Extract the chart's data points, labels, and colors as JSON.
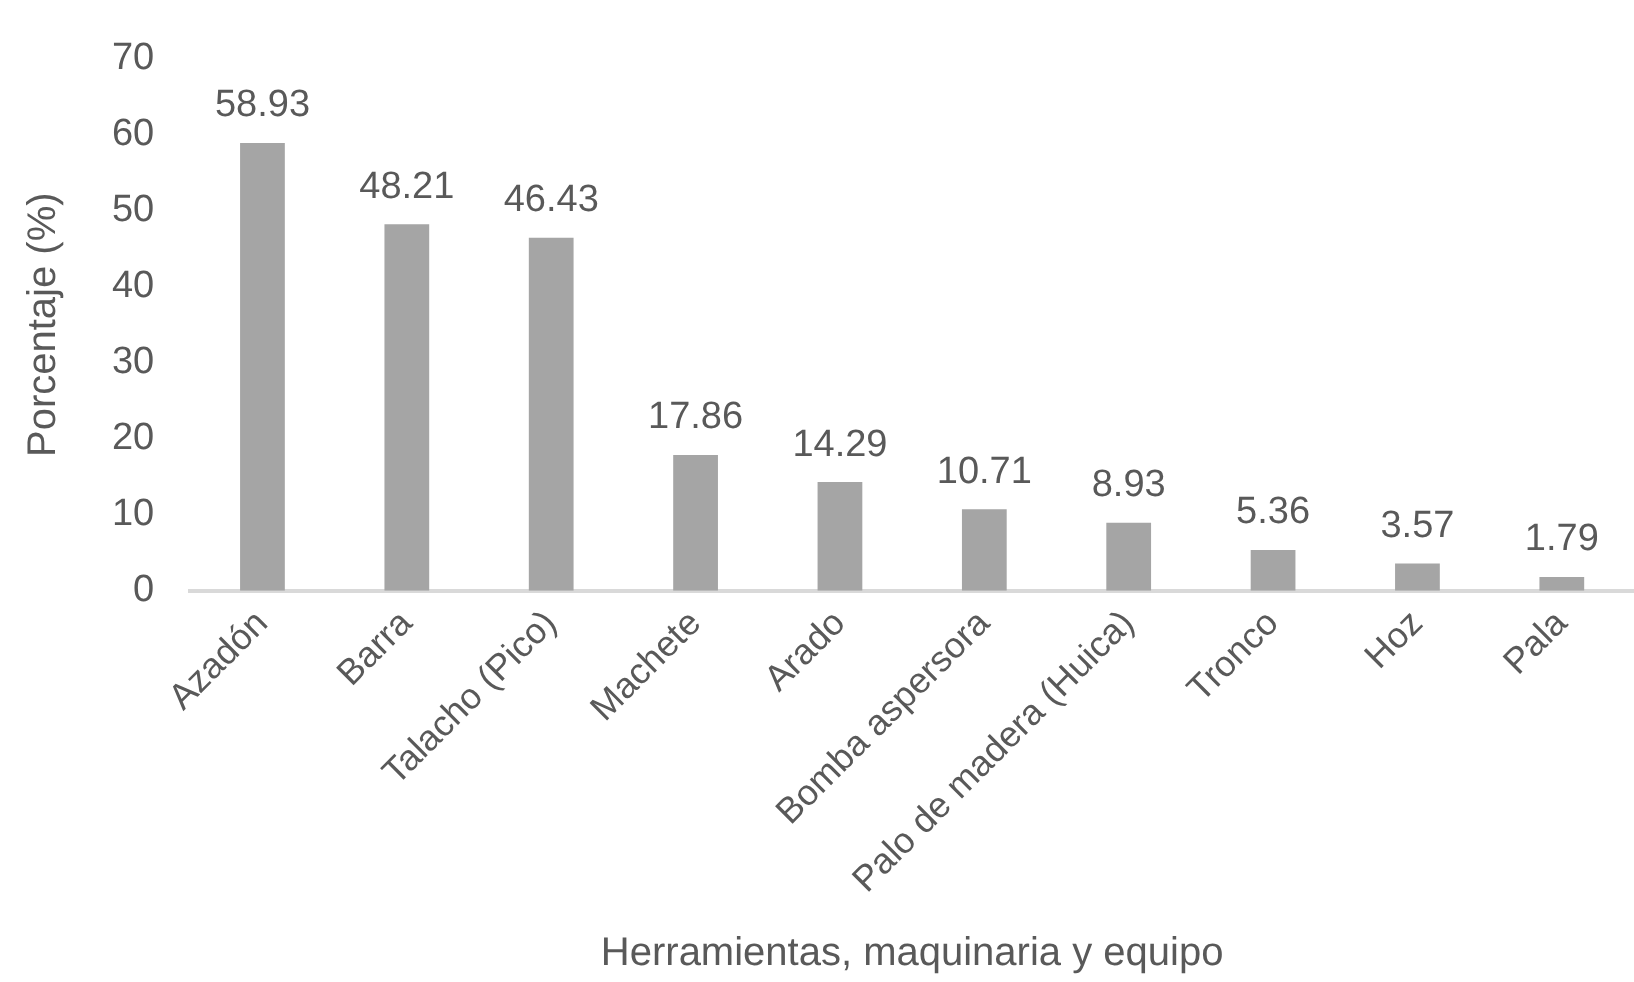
{
  "chart_data": {
    "type": "bar",
    "xlabel": "Herramientas, maquinaria y equipo",
    "ylabel": "Porcentaje (%)",
    "categories": [
      "Azadón",
      "Barra",
      "Talacho (Pico)",
      "Machete",
      "Arado",
      "Bomba aspersora",
      "Palo de madera (Huica)",
      "Tronco",
      "Hoz",
      "Pala"
    ],
    "values": [
      58.93,
      48.21,
      46.43,
      17.86,
      14.29,
      10.71,
      8.93,
      5.36,
      3.57,
      1.79
    ],
    "color": "#a5a5a5",
    "ylim": [
      0,
      70
    ],
    "yticks": [
      0,
      10,
      20,
      30,
      40,
      50,
      60,
      70
    ],
    "grid": false,
    "data_labels": true
  }
}
